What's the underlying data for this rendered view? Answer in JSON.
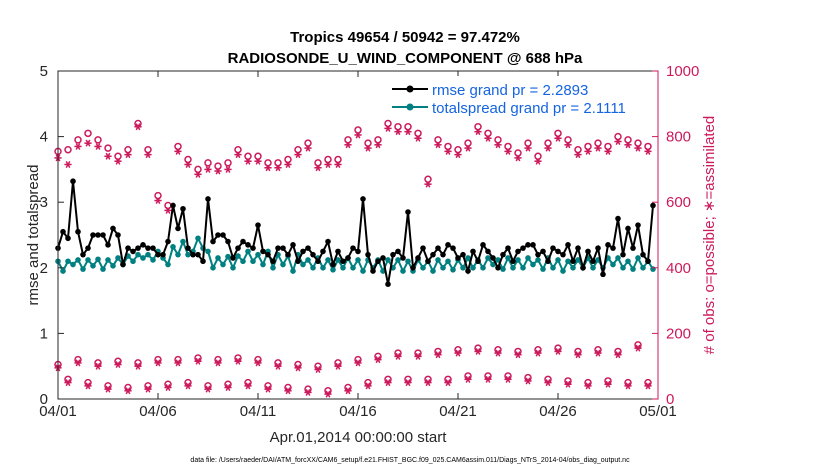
{
  "chart_data": {
    "type": "line",
    "title": "Tropics 49654 / 50942 = 97.472%",
    "subtitle": "RADIOSONDE_U_WIND_COMPONENT @ 688 hPa",
    "xlabel": "Apr.01,2014 00:00:00 start",
    "ylabel_left": "rmse and totalspread",
    "ylabel_right": "# of obs: o=possible; ∗=assimilated",
    "xlim": [
      0,
      30
    ],
    "ylim_left": [
      0,
      5
    ],
    "ylim_right": [
      0,
      1000
    ],
    "x_ticks": [
      0,
      5,
      10,
      15,
      20,
      25,
      30
    ],
    "x_tick_labels": [
      "04/01",
      "04/06",
      "04/11",
      "04/16",
      "04/21",
      "04/26",
      "05/01"
    ],
    "y_ticks_left": [
      "0",
      "1",
      "2",
      "3",
      "4",
      "5"
    ],
    "y_ticks_right": [
      "0",
      "200",
      "400",
      "600",
      "800",
      "1000"
    ],
    "footnote": "data file: /Users/raeder/DAI/ATM_forcXX/CAM6_setup/f.e21.FHIST_BGC.f09_025.CAM6assim.011/Diags_NTrS_2014-04/obs_diag_output.nc",
    "legend": [
      {
        "name": "rmse grand pr = 2.2893",
        "color": "#000000"
      },
      {
        "name": "totalspread grand pr = 2.1111",
        "color": "#008080"
      }
    ],
    "series": [
      {
        "name": "rmse",
        "axis": "left",
        "color": "#000000",
        "x": [
          0.0,
          0.25,
          0.5,
          0.75,
          1.0,
          1.25,
          1.5,
          1.75,
          2.0,
          2.25,
          2.5,
          2.75,
          3.0,
          3.25,
          3.5,
          3.75,
          4.0,
          4.25,
          4.5,
          4.75,
          5.0,
          5.25,
          5.5,
          5.75,
          6.0,
          6.25,
          6.5,
          6.75,
          7.0,
          7.25,
          7.5,
          7.75,
          8.0,
          8.25,
          8.5,
          8.75,
          9.0,
          9.25,
          9.5,
          9.75,
          10.0,
          10.25,
          10.5,
          10.75,
          11.0,
          11.25,
          11.5,
          11.75,
          12.0,
          12.25,
          12.5,
          12.75,
          13.0,
          13.25,
          13.5,
          13.75,
          14.0,
          14.25,
          14.5,
          14.75,
          15.0,
          15.25,
          15.5,
          15.75,
          16.0,
          16.25,
          16.5,
          16.75,
          17.0,
          17.25,
          17.5,
          17.75,
          18.0,
          18.25,
          18.5,
          18.75,
          19.0,
          19.25,
          19.5,
          19.75,
          20.0,
          20.25,
          20.5,
          20.75,
          21.0,
          21.25,
          21.5,
          21.75,
          22.0,
          22.25,
          22.5,
          22.75,
          23.0,
          23.25,
          23.5,
          23.75,
          24.0,
          24.25,
          24.5,
          24.75,
          25.0,
          25.25,
          25.5,
          25.75,
          26.0,
          26.25,
          26.5,
          26.75,
          27.0,
          27.25,
          27.5,
          27.75,
          28.0,
          28.25,
          28.5,
          28.75,
          29.0,
          29.25,
          29.5,
          29.75
        ],
        "y": [
          2.3,
          2.55,
          2.45,
          3.32,
          2.55,
          2.2,
          2.3,
          2.5,
          2.5,
          2.5,
          2.35,
          2.6,
          2.5,
          2.05,
          2.3,
          2.25,
          2.3,
          2.35,
          2.3,
          2.3,
          2.2,
          2.2,
          2.4,
          2.95,
          2.6,
          2.9,
          2.3,
          2.2,
          2.2,
          2.1,
          3.05,
          2.4,
          2.5,
          2.5,
          2.4,
          2.15,
          2.3,
          2.4,
          2.35,
          2.3,
          2.65,
          2.25,
          2.2,
          2.1,
          2.3,
          2.3,
          2.2,
          2.35,
          2.1,
          2.25,
          2.3,
          2.2,
          2.1,
          2.25,
          2.4,
          2.05,
          2.25,
          2.1,
          2.15,
          2.3,
          2.25,
          3.05,
          2.2,
          1.95,
          2.1,
          2.15,
          1.75,
          2.2,
          2.25,
          2.15,
          2.85,
          2.0,
          2.15,
          2.3,
          2.1,
          2.2,
          2.3,
          2.2,
          2.35,
          2.3,
          2.15,
          2.2,
          1.95,
          2.25,
          2.1,
          2.35,
          2.25,
          2.15,
          2.0,
          2.2,
          2.3,
          2.1,
          2.25,
          2.3,
          2.35,
          2.35,
          2.2,
          2.25,
          2.1,
          2.3,
          2.25,
          2.2,
          2.35,
          2.1,
          2.3,
          2.0,
          2.25,
          2.1,
          2.3,
          1.9,
          2.35,
          2.3,
          2.75,
          2.2,
          2.6,
          2.3,
          2.65,
          2.2,
          2.1,
          2.95
        ],
        "marker": "dot"
      },
      {
        "name": "totalspread",
        "axis": "left",
        "color": "#008080",
        "x": [
          0.0,
          0.25,
          0.5,
          0.75,
          1.0,
          1.25,
          1.5,
          1.75,
          2.0,
          2.25,
          2.5,
          2.75,
          3.0,
          3.25,
          3.5,
          3.75,
          4.0,
          4.25,
          4.5,
          4.75,
          5.0,
          5.25,
          5.5,
          5.75,
          6.0,
          6.25,
          6.5,
          6.75,
          7.0,
          7.25,
          7.5,
          7.75,
          8.0,
          8.25,
          8.5,
          8.75,
          9.0,
          9.25,
          9.5,
          9.75,
          10.0,
          10.25,
          10.5,
          10.75,
          11.0,
          11.25,
          11.5,
          11.75,
          12.0,
          12.25,
          12.5,
          12.75,
          13.0,
          13.25,
          13.5,
          13.75,
          14.0,
          14.25,
          14.5,
          14.75,
          15.0,
          15.25,
          15.5,
          15.75,
          16.0,
          16.25,
          16.5,
          16.75,
          17.0,
          17.25,
          17.5,
          17.75,
          18.0,
          18.25,
          18.5,
          18.75,
          19.0,
          19.25,
          19.5,
          19.75,
          20.0,
          20.25,
          20.5,
          20.75,
          21.0,
          21.25,
          21.5,
          21.75,
          22.0,
          22.25,
          22.5,
          22.75,
          23.0,
          23.25,
          23.5,
          23.75,
          24.0,
          24.25,
          24.5,
          24.75,
          25.0,
          25.25,
          25.5,
          25.75,
          26.0,
          26.25,
          26.5,
          26.75,
          27.0,
          27.25,
          27.5,
          27.75,
          28.0,
          28.25,
          28.5,
          28.75,
          29.0,
          29.25,
          29.5,
          29.75
        ],
        "y": [
          2.1,
          1.95,
          2.1,
          2.05,
          2.12,
          1.98,
          2.12,
          2.03,
          2.13,
          1.98,
          2.12,
          2.03,
          2.15,
          2.05,
          2.18,
          2.1,
          2.2,
          2.15,
          2.2,
          2.12,
          2.25,
          2.15,
          2.05,
          2.32,
          2.2,
          2.4,
          2.2,
          2.25,
          2.45,
          2.3,
          2.25,
          2.0,
          2.15,
          2.05,
          2.17,
          2.0,
          2.18,
          2.1,
          2.25,
          2.1,
          2.2,
          2.05,
          2.25,
          2.0,
          2.2,
          2.05,
          2.18,
          1.95,
          2.2,
          2.05,
          2.12,
          2.0,
          2.15,
          2.0,
          2.12,
          1.97,
          2.12,
          2.0,
          2.15,
          2.0,
          2.12,
          1.95,
          2.12,
          2.0,
          2.12,
          1.95,
          2.12,
          2.0,
          2.12,
          1.95,
          2.1,
          1.95,
          2.12,
          2.0,
          2.1,
          1.95,
          2.12,
          2.0,
          2.1,
          1.97,
          2.12,
          2.0,
          2.15,
          2.0,
          2.12,
          2.0,
          2.15,
          2.05,
          2.12,
          1.98,
          2.15,
          2.0,
          2.12,
          2.0,
          2.15,
          2.05,
          2.12,
          1.98,
          2.15,
          2.0,
          2.12,
          1.95,
          2.1,
          2.0,
          2.12,
          2.0,
          2.15,
          2.0,
          2.12,
          2.0,
          2.15,
          2.05,
          2.15,
          2.0,
          2.1,
          1.98,
          2.15,
          2.0,
          2.1,
          1.98
        ],
        "marker": "dot"
      },
      {
        "name": "possible (upper)",
        "axis": "right",
        "color": "#cc1a5c",
        "marker": "circle",
        "x": [
          0.0,
          0.5,
          1.0,
          1.5,
          2.0,
          2.5,
          3.0,
          3.5,
          4.0,
          4.5,
          5.0,
          5.5,
          6.0,
          6.5,
          7.0,
          7.5,
          8.0,
          8.5,
          9.0,
          9.5,
          10.0,
          10.5,
          11.0,
          11.5,
          12.0,
          12.5,
          13.0,
          13.5,
          14.0,
          14.5,
          15.0,
          15.5,
          16.0,
          16.5,
          17.0,
          17.5,
          18.0,
          18.5,
          19.0,
          19.5,
          20.0,
          20.5,
          21.0,
          21.5,
          22.0,
          22.5,
          23.0,
          23.5,
          24.0,
          24.5,
          25.0,
          25.5,
          26.0,
          26.5,
          27.0,
          27.5,
          28.0,
          28.5,
          29.0,
          29.5
        ],
        "y": [
          755,
          760,
          790,
          810,
          790,
          765,
          740,
          760,
          840,
          760,
          620,
          590,
          770,
          730,
          700,
          720,
          710,
          720,
          760,
          740,
          740,
          720,
          720,
          730,
          760,
          780,
          720,
          730,
          730,
          790,
          820,
          780,
          790,
          840,
          830,
          830,
          810,
          670,
          790,
          770,
          760,
          780,
          830,
          810,
          790,
          770,
          750,
          780,
          740,
          780,
          810,
          790,
          760,
          770,
          780,
          770,
          800,
          790,
          780,
          770
        ]
      },
      {
        "name": "assimilated (upper)",
        "axis": "right",
        "color": "#cc1a5c",
        "marker": "star",
        "x": [
          0.0,
          0.5,
          1.0,
          1.5,
          2.0,
          2.5,
          3.0,
          3.5,
          4.0,
          4.5,
          5.0,
          5.5,
          6.0,
          6.5,
          7.0,
          7.5,
          8.0,
          8.5,
          9.0,
          9.5,
          10.0,
          10.5,
          11.0,
          11.5,
          12.0,
          12.5,
          13.0,
          13.5,
          14.0,
          14.5,
          15.0,
          15.5,
          16.0,
          16.5,
          17.0,
          17.5,
          18.0,
          18.5,
          19.0,
          19.5,
          20.0,
          20.5,
          21.0,
          21.5,
          22.0,
          22.5,
          23.0,
          23.5,
          24.0,
          24.5,
          25.0,
          25.5,
          26.0,
          26.5,
          27.0,
          27.5,
          28.0,
          28.5,
          29.0,
          29.5
        ],
        "y": [
          735,
          715,
          770,
          780,
          770,
          740,
          725,
          745,
          830,
          745,
          605,
          575,
          755,
          715,
          685,
          700,
          695,
          700,
          745,
          725,
          725,
          705,
          705,
          715,
          745,
          765,
          705,
          715,
          715,
          775,
          805,
          765,
          775,
          825,
          815,
          815,
          795,
          655,
          775,
          755,
          745,
          765,
          815,
          795,
          775,
          755,
          735,
          765,
          725,
          765,
          795,
          775,
          745,
          755,
          765,
          755,
          785,
          775,
          765,
          755
        ]
      },
      {
        "name": "possible (lower)",
        "axis": "right",
        "color": "#cc1a5c",
        "marker": "circle",
        "x": [
          0.0,
          0.5,
          1.0,
          1.5,
          2.0,
          2.5,
          3.0,
          3.5,
          4.0,
          4.5,
          5.0,
          5.5,
          6.0,
          6.5,
          7.0,
          7.5,
          8.0,
          8.5,
          9.0,
          9.5,
          10.0,
          10.5,
          11.0,
          11.5,
          12.0,
          12.5,
          13.0,
          13.5,
          14.0,
          14.5,
          15.0,
          15.5,
          16.0,
          16.5,
          17.0,
          17.5,
          18.0,
          18.5,
          19.0,
          19.5,
          20.0,
          20.5,
          21.0,
          21.5,
          22.0,
          22.5,
          23.0,
          23.5,
          24.0,
          24.5,
          25.0,
          25.5,
          26.0,
          26.5,
          27.0,
          27.5,
          28.0,
          28.5,
          29.0,
          29.5
        ],
        "y": [
          105,
          60,
          120,
          50,
          110,
          40,
          115,
          35,
          110,
          40,
          120,
          45,
          120,
          50,
          125,
          40,
          120,
          45,
          125,
          50,
          120,
          40,
          110,
          35,
          105,
          30,
          100,
          25,
          110,
          35,
          120,
          50,
          130,
          60,
          140,
          60,
          140,
          60,
          145,
          60,
          150,
          70,
          155,
          70,
          150,
          70,
          145,
          65,
          150,
          60,
          155,
          55,
          145,
          50,
          150,
          55,
          145,
          50,
          165,
          50
        ]
      },
      {
        "name": "assimilated (lower)",
        "axis": "right",
        "color": "#cc1a5c",
        "marker": "star",
        "x": [
          0.0,
          0.5,
          1.0,
          1.5,
          2.0,
          2.5,
          3.0,
          3.5,
          4.0,
          4.5,
          5.0,
          5.5,
          6.0,
          6.5,
          7.0,
          7.5,
          8.0,
          8.5,
          9.0,
          9.5,
          10.0,
          10.5,
          11.0,
          11.5,
          12.0,
          12.5,
          13.0,
          13.5,
          14.0,
          14.5,
          15.0,
          15.5,
          16.0,
          16.5,
          17.0,
          17.5,
          18.0,
          18.5,
          19.0,
          19.5,
          20.0,
          20.5,
          21.0,
          21.5,
          22.0,
          22.5,
          23.0,
          23.5,
          24.0,
          24.5,
          25.0,
          25.5,
          26.0,
          26.5,
          27.0,
          27.5,
          28.0,
          28.5,
          29.0,
          29.5
        ],
        "y": [
          95,
          50,
          110,
          40,
          100,
          30,
          105,
          25,
          100,
          30,
          110,
          35,
          110,
          40,
          115,
          30,
          110,
          35,
          115,
          40,
          110,
          30,
          100,
          25,
          95,
          20,
          90,
          15,
          100,
          25,
          110,
          40,
          120,
          50,
          130,
          50,
          130,
          50,
          135,
          50,
          140,
          60,
          145,
          60,
          140,
          60,
          135,
          55,
          140,
          50,
          145,
          45,
          135,
          40,
          140,
          45,
          135,
          40,
          155,
          40
        ]
      }
    ]
  }
}
